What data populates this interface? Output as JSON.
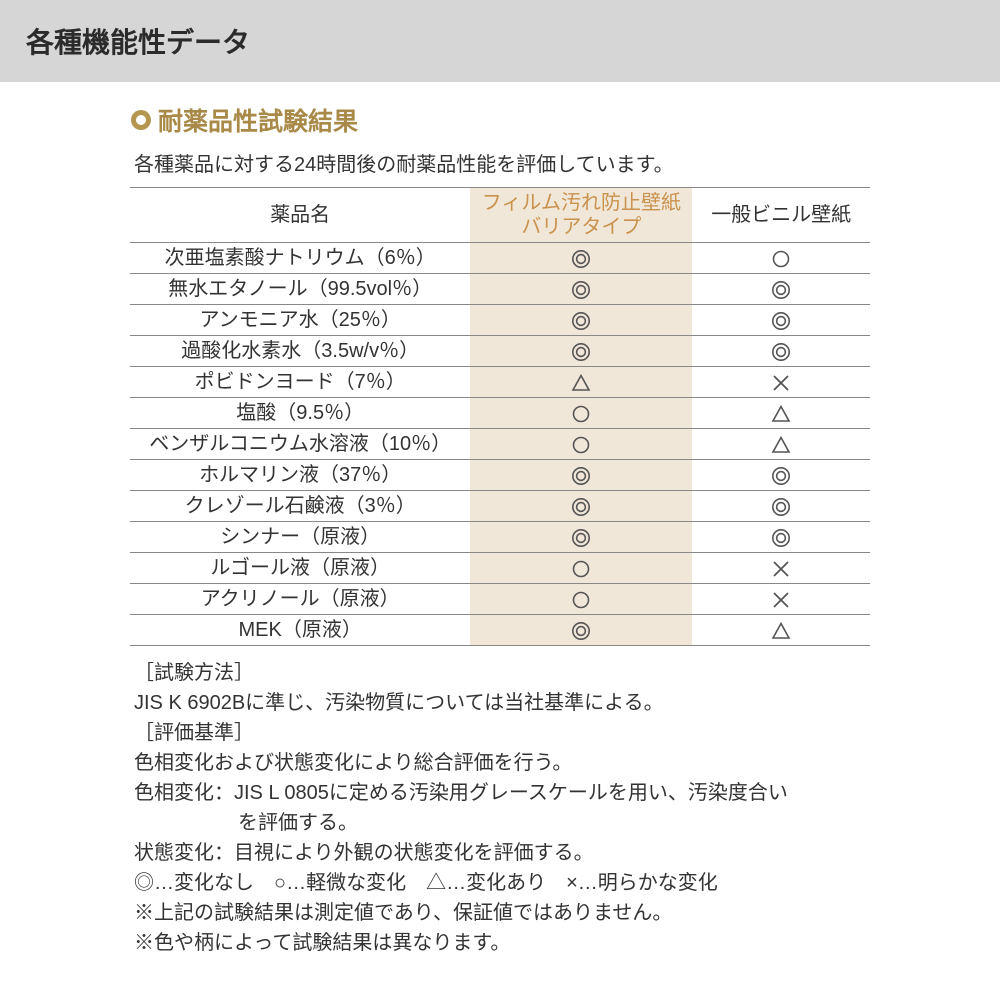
{
  "header": {
    "title": "各種機能性データ"
  },
  "section": {
    "heading": "耐薬品性試験結果",
    "subtitle": "各種薬品に対する24時間後の耐薬品性能を評価しています。",
    "bullet_outer": "#b4964f",
    "bullet_inner": "#ffffff"
  },
  "table": {
    "columns": {
      "name": "薬品名",
      "a_line1": "フィルム汚れ防止壁紙",
      "a_line2": "バリアタイプ",
      "b": "一般ビニル壁紙"
    },
    "highlight_bg": "#f1e7d9",
    "highlight_text": "#c9924d",
    "border_color": "#888888",
    "symbol_color": "#555555",
    "rows": [
      {
        "name": "次亜塩素酸ナトリウム（6％）",
        "a": "double",
        "b": "single"
      },
      {
        "name": "無水エタノール（99.5vol％）",
        "a": "double",
        "b": "double"
      },
      {
        "name": "アンモニア水（25％）",
        "a": "double",
        "b": "double"
      },
      {
        "name": "過酸化水素水（3.5w/v％）",
        "a": "double",
        "b": "double"
      },
      {
        "name": "ポビドンヨード（7％）",
        "a": "triangle",
        "b": "cross"
      },
      {
        "name": "塩酸（9.5％）",
        "a": "single",
        "b": "triangle"
      },
      {
        "name": "ベンザルコニウム水溶液（10％）",
        "a": "single",
        "b": "triangle"
      },
      {
        "name": "ホルマリン液（37％）",
        "a": "double",
        "b": "double"
      },
      {
        "name": "クレゾール石鹸液（3％）",
        "a": "double",
        "b": "double"
      },
      {
        "name": "シンナー（原液）",
        "a": "double",
        "b": "double"
      },
      {
        "name": "ルゴール液（原液）",
        "a": "single",
        "b": "cross"
      },
      {
        "name": "アクリノール（原液）",
        "a": "single",
        "b": "cross"
      },
      {
        "name": "MEK（原液）",
        "a": "double",
        "b": "triangle"
      }
    ]
  },
  "notes": {
    "l1": "［試験方法］",
    "l2": "JIS K 6902Bに準じ、汚染物質については当社基準による。",
    "l3": "［評価基準］",
    "l4": "色相変化および状態変化により総合評価を行う。",
    "l5a": "色相変化：JIS L 0805に定める汚染用グレースケールを用い、汚染度合い",
    "l5b": "を評価する。",
    "l6": "状態変化：目視により外観の状態変化を評価する。",
    "l7": "◎…変化なし　○…軽微な変化　△…変化あり　×…明らかな変化",
    "l8": "※上記の試験結果は測定値であり、保証値ではありません。",
    "l9": "※色や柄によって試験結果は異なります。"
  }
}
